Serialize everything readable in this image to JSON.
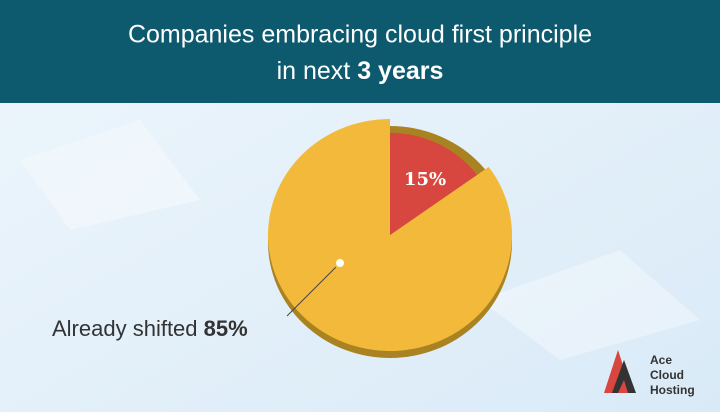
{
  "chart_data": {
    "type": "pie",
    "title": "Companies embracing cloud first principle",
    "subtitle": "in next",
    "subtitle_emphasis": "3 years",
    "categories": [
      "Already shifted",
      null
    ],
    "values": [
      85,
      15
    ],
    "value_labels": [
      "85%",
      "15%"
    ],
    "colors": [
      "#f2b93b",
      "#d8473f"
    ]
  },
  "logo": {
    "lines": [
      "Ace",
      "Cloud",
      "Hosting"
    ]
  }
}
